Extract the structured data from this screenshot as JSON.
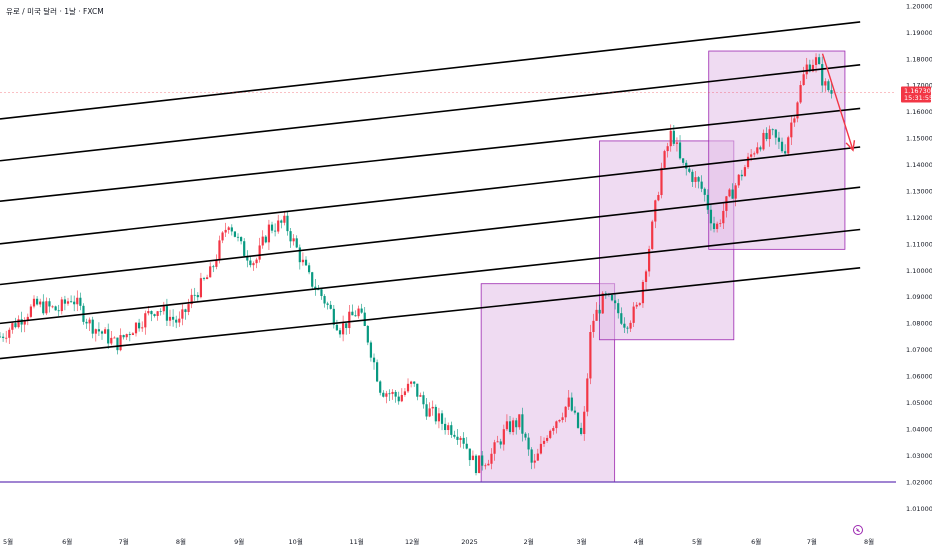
{
  "header": {
    "title": "유로 / 미국 달러 · 1날 · FXCM"
  },
  "colors": {
    "up": "#f23645",
    "down": "#089981",
    "channel": "#000000",
    "box_fill": "#e1bee7",
    "box_stroke": "#9c27b0",
    "support": "#673ab7",
    "arrow": "#f23645",
    "badge": "#f23645",
    "dashed": "#f23645"
  },
  "price_badge": {
    "price": "1.16730",
    "countdown": "15:31:55"
  },
  "logo_icon": "tradingview-logo-icon",
  "chart_data": {
    "type": "candlestick",
    "title": "유로 / 미국 달러 · 1날 · FXCM",
    "ylim": [
      1.0045,
      1.2023
    ],
    "y_ticks": [
      "1.20000",
      "1.19000",
      "1.18000",
      "1.17000",
      "1.16000",
      "1.15000",
      "1.14000",
      "1.13000",
      "1.12000",
      "1.11000",
      "1.10000",
      "1.09000",
      "1.08000",
      "1.07000",
      "1.06000",
      "1.05000",
      "1.04000",
      "1.03000",
      "1.02000",
      "1.01000"
    ],
    "x_ticks": [
      {
        "label": "5월",
        "t": 0.009
      },
      {
        "label": "6월",
        "t": 0.075
      },
      {
        "label": "7월",
        "t": 0.138
      },
      {
        "label": "8월",
        "t": 0.202
      },
      {
        "label": "9월",
        "t": 0.267
      },
      {
        "label": "10월",
        "t": 0.33
      },
      {
        "label": "11월",
        "t": 0.398
      },
      {
        "label": "12월",
        "t": 0.46
      },
      {
        "label": "2025",
        "t": 0.524
      },
      {
        "label": "2월",
        "t": 0.59
      },
      {
        "label": "3월",
        "t": 0.649
      },
      {
        "label": "4월",
        "t": 0.713
      },
      {
        "label": "5월",
        "t": 0.778
      },
      {
        "label": "6월",
        "t": 0.844
      },
      {
        "label": "7월",
        "t": 0.906
      },
      {
        "label": "8월",
        "t": 0.97
      }
    ],
    "price_path": [
      [
        0.0,
        1.075
      ],
      [
        0.04,
        1.087
      ],
      [
        0.065,
        1.085
      ],
      [
        0.08,
        1.09
      ],
      [
        0.1,
        1.08
      ],
      [
        0.13,
        1.072
      ],
      [
        0.15,
        1.079
      ],
      [
        0.175,
        1.086
      ],
      [
        0.2,
        1.08
      ],
      [
        0.215,
        1.09
      ],
      [
        0.235,
        1.099
      ],
      [
        0.255,
        1.119
      ],
      [
        0.27,
        1.108
      ],
      [
        0.285,
        1.103
      ],
      [
        0.3,
        1.116
      ],
      [
        0.318,
        1.118
      ],
      [
        0.33,
        1.109
      ],
      [
        0.345,
        1.097
      ],
      [
        0.36,
        1.09
      ],
      [
        0.38,
        1.078
      ],
      [
        0.4,
        1.085
      ],
      [
        0.41,
        1.075
      ],
      [
        0.425,
        1.055
      ],
      [
        0.445,
        1.052
      ],
      [
        0.46,
        1.057
      ],
      [
        0.475,
        1.048
      ],
      [
        0.495,
        1.042
      ],
      [
        0.515,
        1.038
      ],
      [
        0.53,
        1.026
      ],
      [
        0.548,
        1.03
      ],
      [
        0.565,
        1.04
      ],
      [
        0.58,
        1.043
      ],
      [
        0.595,
        1.025
      ],
      [
        0.612,
        1.04
      ],
      [
        0.635,
        1.05
      ],
      [
        0.65,
        1.036
      ],
      [
        0.66,
        1.08
      ],
      [
        0.675,
        1.09
      ],
      [
        0.688,
        1.085
      ],
      [
        0.698,
        1.08
      ],
      [
        0.712,
        1.086
      ],
      [
        0.725,
        1.11
      ],
      [
        0.738,
        1.138
      ],
      [
        0.75,
        1.153
      ],
      [
        0.76,
        1.14
      ],
      [
        0.772,
        1.136
      ],
      [
        0.785,
        1.13
      ],
      [
        0.798,
        1.115
      ],
      [
        0.81,
        1.125
      ],
      [
        0.825,
        1.135
      ],
      [
        0.845,
        1.148
      ],
      [
        0.862,
        1.151
      ],
      [
        0.875,
        1.145
      ],
      [
        0.89,
        1.165
      ],
      [
        0.9,
        1.177
      ],
      [
        0.91,
        1.18
      ],
      [
        0.92,
        1.17
      ],
      [
        0.928,
        1.1673
      ]
    ],
    "channel_lines": [
      {
        "t1": 0.0,
        "y1": 1.0667,
        "t2": 0.96,
        "y2": 1.101
      },
      {
        "t1": 0.0,
        "y1": 1.08,
        "t2": 0.96,
        "y2": 1.1155
      },
      {
        "t1": 0.0,
        "y1": 1.0947,
        "t2": 0.96,
        "y2": 1.1315
      },
      {
        "t1": 0.0,
        "y1": 1.1101,
        "t2": 0.96,
        "y2": 1.1467
      },
      {
        "t1": 0.0,
        "y1": 1.1262,
        "t2": 0.96,
        "y2": 1.1613
      },
      {
        "t1": 0.0,
        "y1": 1.1415,
        "t2": 0.96,
        "y2": 1.1778
      },
      {
        "t1": 0.0,
        "y1": 1.1573,
        "t2": 0.96,
        "y2": 1.194
      }
    ],
    "support_line": 1.02,
    "boxes": [
      {
        "t1": 0.537,
        "t2": 0.686,
        "y1": 1.02,
        "y2": 1.095
      },
      {
        "t1": 0.669,
        "t2": 0.819,
        "y1": 1.0738,
        "y2": 1.149
      },
      {
        "t1": 0.791,
        "t2": 0.943,
        "y1": 1.108,
        "y2": 1.183
      }
    ],
    "arrow": {
      "t1": 0.918,
      "y1": 1.182,
      "t2": 0.952,
      "y2": 1.1455
    },
    "last_price": 1.1673
  }
}
